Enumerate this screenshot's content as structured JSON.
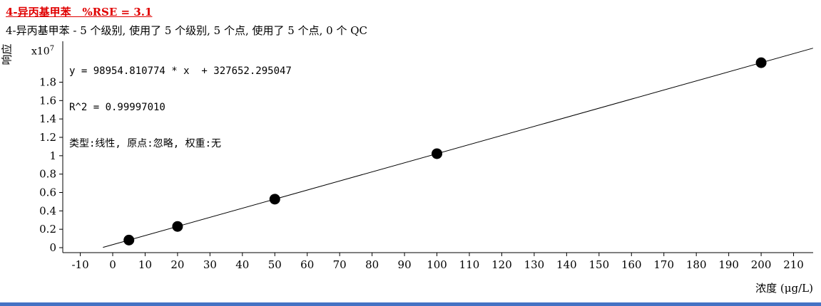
{
  "header": {
    "title": "4-异丙基甲苯   %RSE = 3.1",
    "subtitle": "4-异丙基甲苯 - 5 个级别, 使用了 5 个级别, 5 个点, 使用了 5 个点, 0 个 QC"
  },
  "annotation": {
    "equation": "y = 98954.810774 * x  + 327652.295047",
    "r2": "R^2 = 0.99997010",
    "fit": "类型:线性, 原点:忽略, 权重:无"
  },
  "chart_data": {
    "type": "scatter",
    "title": "4-异丙基甲苯 calibration curve",
    "xlabel": "浓度 (μg/L)",
    "ylabel": "响应",
    "y_multiplier_base": "x10",
    "y_multiplier_exp": "7",
    "x": [
      5,
      20,
      50,
      100,
      200
    ],
    "y_e7": [
      0.0822,
      0.2307,
      0.5275,
      1.0223,
      2.0119
    ],
    "fit_line": {
      "slope": 98954.810774,
      "intercept": 327652.295047,
      "slope_e7": 0.0098954810774,
      "intercept_e7": 0.0327652295047,
      "x_start": -3,
      "x_end": 216
    },
    "x_ticks": [
      -10,
      0,
      10,
      20,
      30,
      40,
      50,
      60,
      70,
      80,
      90,
      100,
      110,
      120,
      130,
      140,
      150,
      160,
      170,
      180,
      190,
      200,
      210
    ],
    "y_tick_values": [
      0,
      0.2,
      0.4,
      0.6,
      0.8,
      1,
      1.2,
      1.4,
      1.6,
      1.8
    ],
    "y_tick_labels": [
      "0",
      "0.2",
      "0.4",
      "0.6",
      "0.8",
      "1",
      "1.2",
      "1.4",
      "1.6",
      "1.8"
    ],
    "xlim": [
      -16,
      217
    ],
    "ylim_e7": [
      -0.054,
      2.25
    ],
    "grid": false,
    "legend": "none"
  },
  "colors": {
    "title": "#e00000",
    "point": "#000000",
    "fit_line": "#000000",
    "axis": "#000000",
    "bottom_bar": "#4472c4"
  }
}
